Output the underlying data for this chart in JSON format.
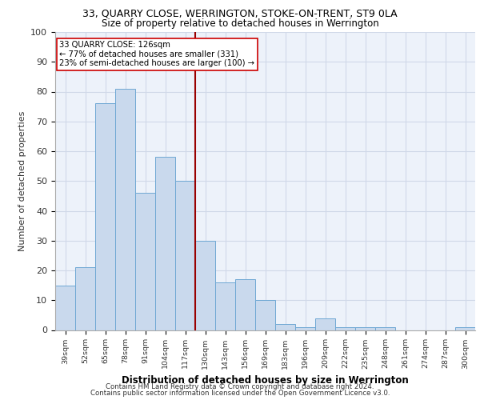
{
  "title1": "33, QUARRY CLOSE, WERRINGTON, STOKE-ON-TRENT, ST9 0LA",
  "title2": "Size of property relative to detached houses in Werrington",
  "xlabel": "Distribution of detached houses by size in Werrington",
  "ylabel": "Number of detached properties",
  "categories": [
    "39sqm",
    "52sqm",
    "65sqm",
    "78sqm",
    "91sqm",
    "104sqm",
    "117sqm",
    "130sqm",
    "143sqm",
    "156sqm",
    "169sqm",
    "183sqm",
    "196sqm",
    "209sqm",
    "222sqm",
    "235sqm",
    "248sqm",
    "261sqm",
    "274sqm",
    "287sqm",
    "300sqm"
  ],
  "values": [
    15,
    21,
    76,
    81,
    46,
    58,
    50,
    30,
    16,
    17,
    10,
    2,
    1,
    4,
    1,
    1,
    1,
    0,
    0,
    0,
    1
  ],
  "bar_color": "#c9d9ed",
  "bar_edge_color": "#6fa8d4",
  "vline_x_index": 7,
  "vline_color": "#990000",
  "annotation_line1": "33 QUARRY CLOSE: 126sqm",
  "annotation_line2": "← 77% of detached houses are smaller (331)",
  "annotation_line3": "23% of semi-detached houses are larger (100) →",
  "annotation_box_color": "#ffffff",
  "annotation_box_edge": "#cc0000",
  "ylim": [
    0,
    100
  ],
  "yticks": [
    0,
    10,
    20,
    30,
    40,
    50,
    60,
    70,
    80,
    90,
    100
  ],
  "grid_color": "#d0d8e8",
  "background_color": "#edf2fa",
  "footer1": "Contains HM Land Registry data © Crown copyright and database right 2024.",
  "footer2": "Contains public sector information licensed under the Open Government Licence v3.0."
}
